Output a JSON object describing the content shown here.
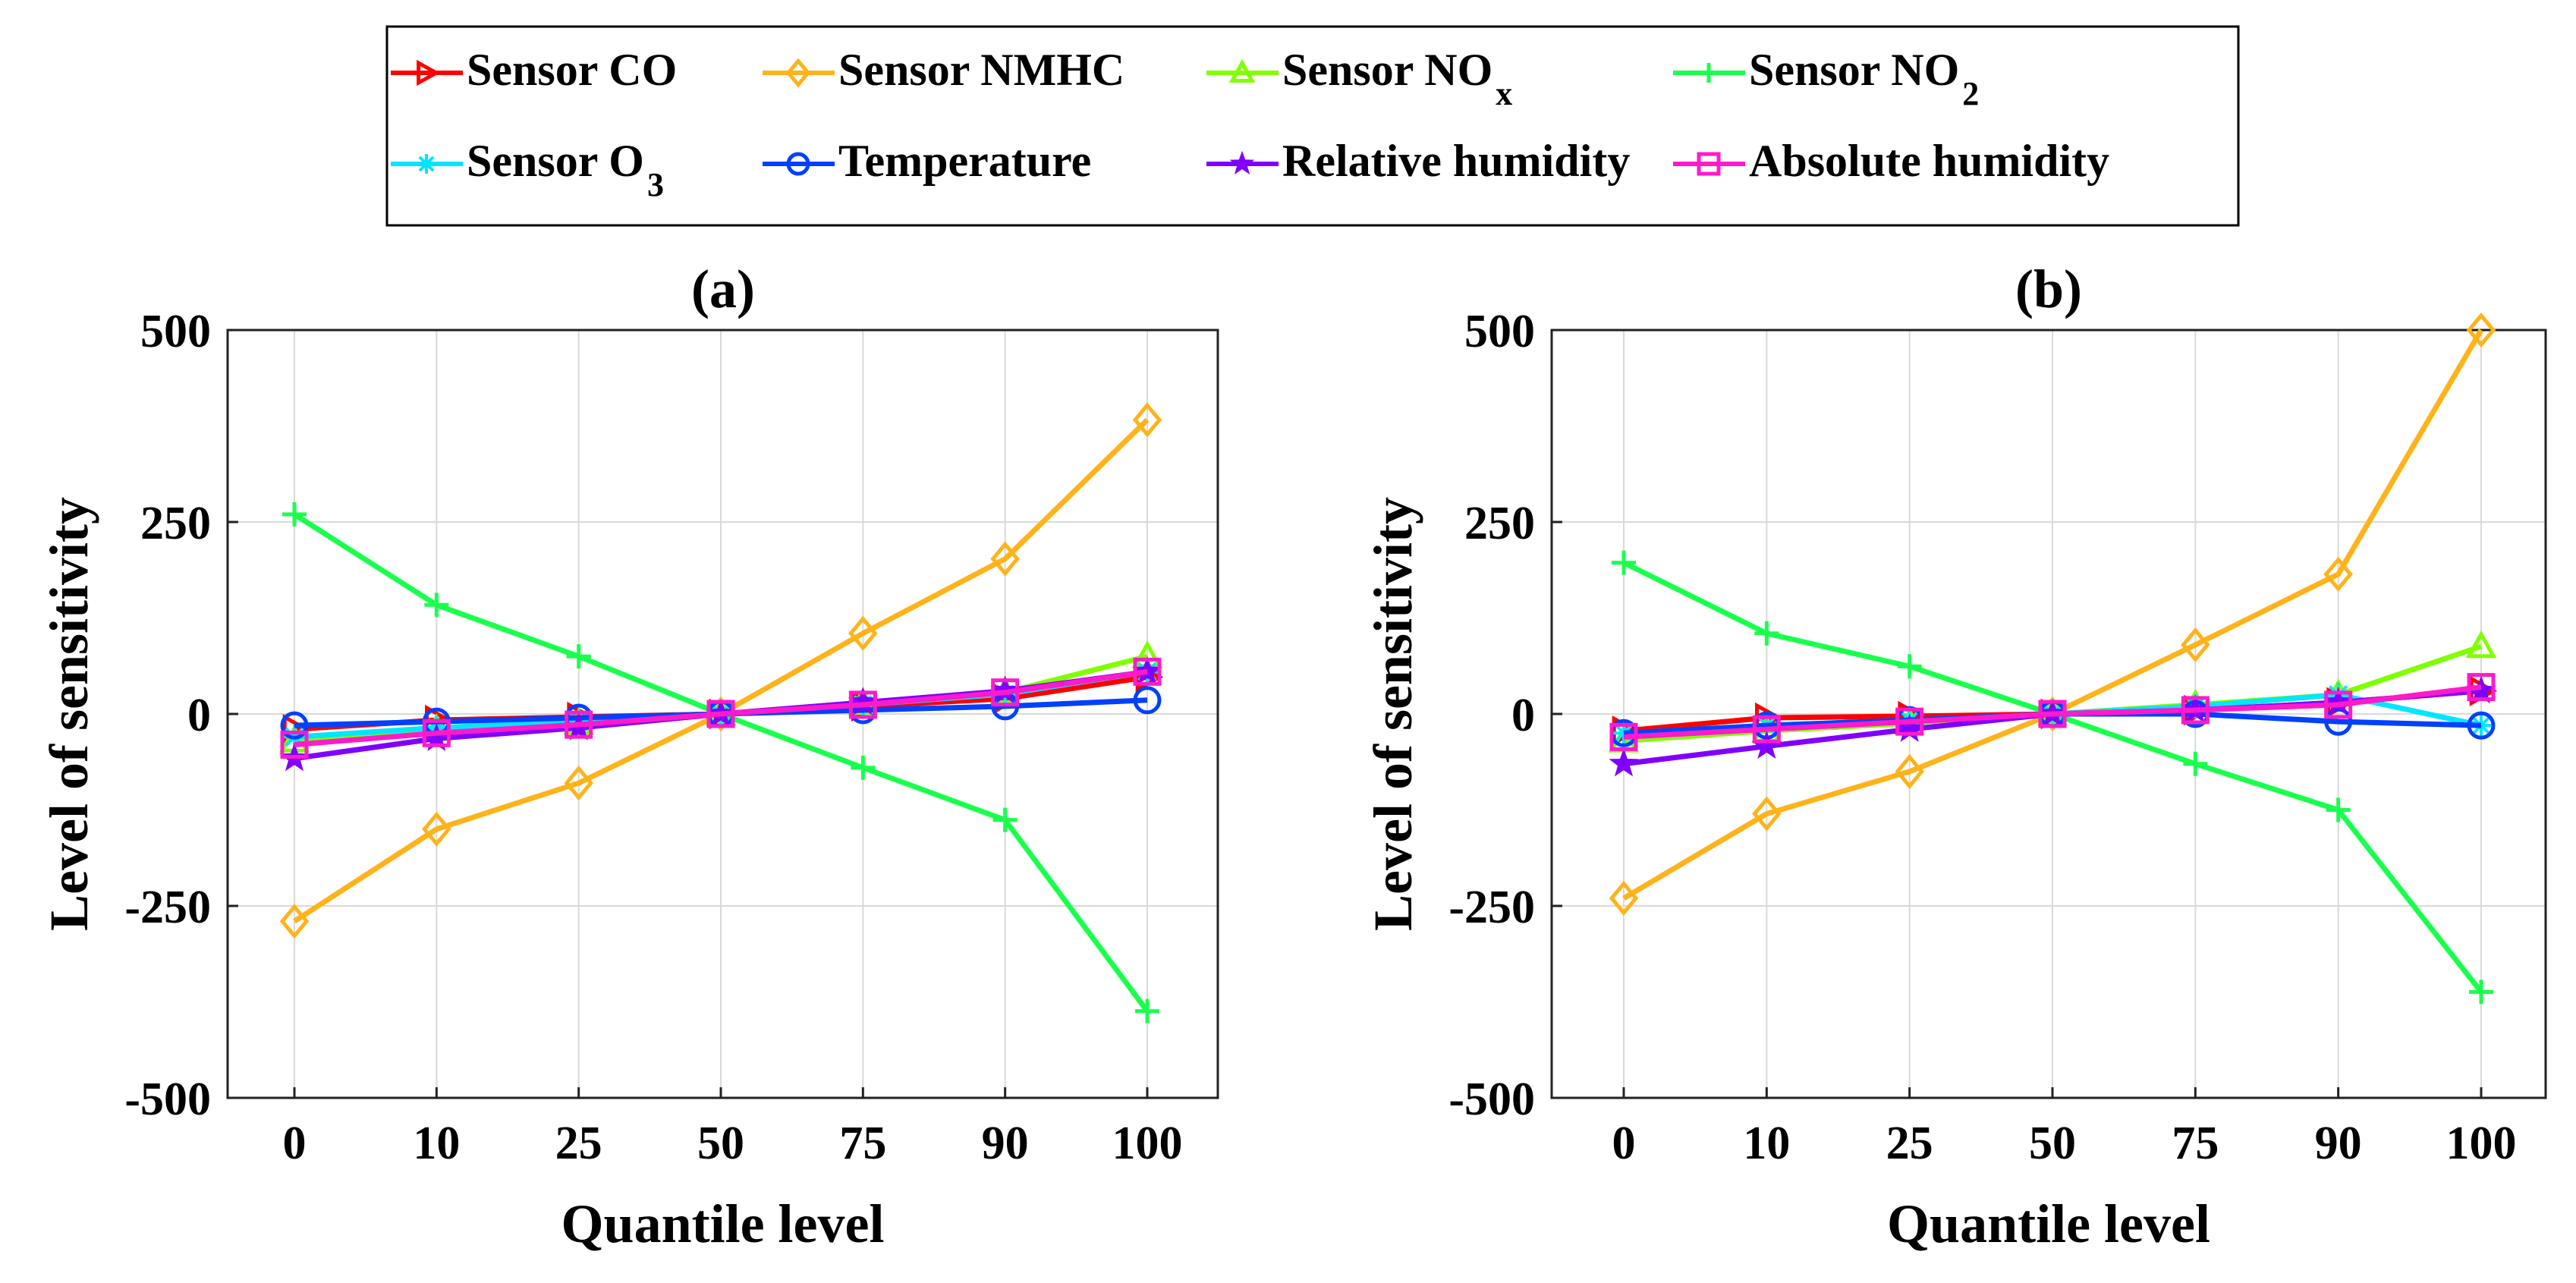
{
  "legend": {
    "entries": [
      {
        "label": "Sensor CO",
        "sub": "",
        "color": "#ff0000",
        "marker": "triangle-right"
      },
      {
        "label": "Sensor NMHC",
        "sub": "",
        "color": "#ffb31a",
        "marker": "diamond"
      },
      {
        "label": "Sensor NO",
        "sub": "x",
        "color": "#80ff00",
        "marker": "triangle-up"
      },
      {
        "label": "Sensor NO",
        "sub": "2",
        "color": "#1aff4d",
        "marker": "plus"
      },
      {
        "label": "Sensor O",
        "sub": "3",
        "color": "#00e6ff",
        "marker": "asterisk"
      },
      {
        "label": "Temperature",
        "sub": "",
        "color": "#0040ff",
        "marker": "circle"
      },
      {
        "label": "Relative humidity",
        "sub": "",
        "color": "#8000ff",
        "marker": "star"
      },
      {
        "label": "Absolute humidity",
        "sub": "",
        "color": "#ff1acc",
        "marker": "square"
      }
    ]
  },
  "chart_data": [
    {
      "type": "line",
      "title": "(a)",
      "xlabel": "Quantile level",
      "ylabel": "Level of sensitivity",
      "categories": [
        "0",
        "10",
        "25",
        "50",
        "75",
        "90",
        "100"
      ],
      "ylim": [
        -500,
        500
      ],
      "yticks": [
        "500",
        "250",
        "0",
        "-250",
        "-500"
      ],
      "ytick_values": [
        500,
        250,
        0,
        -250,
        -500
      ],
      "series": [
        {
          "name": "Sensor CO",
          "values": [
            -20,
            -8,
            -4,
            0,
            10,
            20,
            48
          ]
        },
        {
          "name": "Sensor NMHC",
          "values": [
            -270,
            -150,
            -90,
            0,
            105,
            202,
            383
          ]
        },
        {
          "name": "Sensor NOx",
          "values": [
            -35,
            -20,
            -12,
            0,
            14,
            28,
            75
          ]
        },
        {
          "name": "Sensor NO2",
          "values": [
            260,
            142,
            75,
            0,
            -70,
            -138,
            -387
          ]
        },
        {
          "name": "Sensor O3",
          "values": [
            -30,
            -18,
            -10,
            0,
            12,
            26,
            55
          ]
        },
        {
          "name": "Temperature",
          "values": [
            -15,
            -10,
            -5,
            0,
            5,
            10,
            18
          ]
        },
        {
          "name": "Relative humidity",
          "values": [
            -58,
            -32,
            -18,
            0,
            15,
            30,
            55
          ]
        },
        {
          "name": "Absolute humidity",
          "values": [
            -40,
            -25,
            -14,
            0,
            12,
            28,
            55
          ]
        }
      ]
    },
    {
      "type": "line",
      "title": "(b)",
      "xlabel": "Quantile level",
      "ylabel": "Level of sensitivity",
      "categories": [
        "0",
        "10",
        "25",
        "50",
        "75",
        "90",
        "100"
      ],
      "ylim": [
        -500,
        500
      ],
      "yticks": [
        "500",
        "250",
        "0",
        "-250",
        "-500"
      ],
      "ytick_values": [
        500,
        250,
        0,
        -250,
        -500
      ],
      "series": [
        {
          "name": "Sensor CO",
          "values": [
            -22,
            -5,
            -3,
            0,
            5,
            15,
            30
          ]
        },
        {
          "name": "Sensor NMHC",
          "values": [
            -240,
            -130,
            -75,
            0,
            90,
            182,
            500
          ]
        },
        {
          "name": "Sensor NOx",
          "values": [
            -35,
            -22,
            -12,
            0,
            12,
            25,
            88
          ]
        },
        {
          "name": "Sensor NO2",
          "values": [
            197,
            105,
            62,
            0,
            -65,
            -125,
            -362
          ]
        },
        {
          "name": "Sensor O3",
          "values": [
            -25,
            -15,
            -8,
            0,
            10,
            25,
            -15
          ]
        },
        {
          "name": "Temperature",
          "values": [
            -25,
            -15,
            -8,
            0,
            0,
            -10,
            -15
          ]
        },
        {
          "name": "Relative humidity",
          "values": [
            -65,
            -42,
            -20,
            0,
            5,
            15,
            30
          ]
        },
        {
          "name": "Absolute humidity",
          "values": [
            -30,
            -20,
            -10,
            0,
            5,
            12,
            35
          ]
        }
      ]
    }
  ]
}
